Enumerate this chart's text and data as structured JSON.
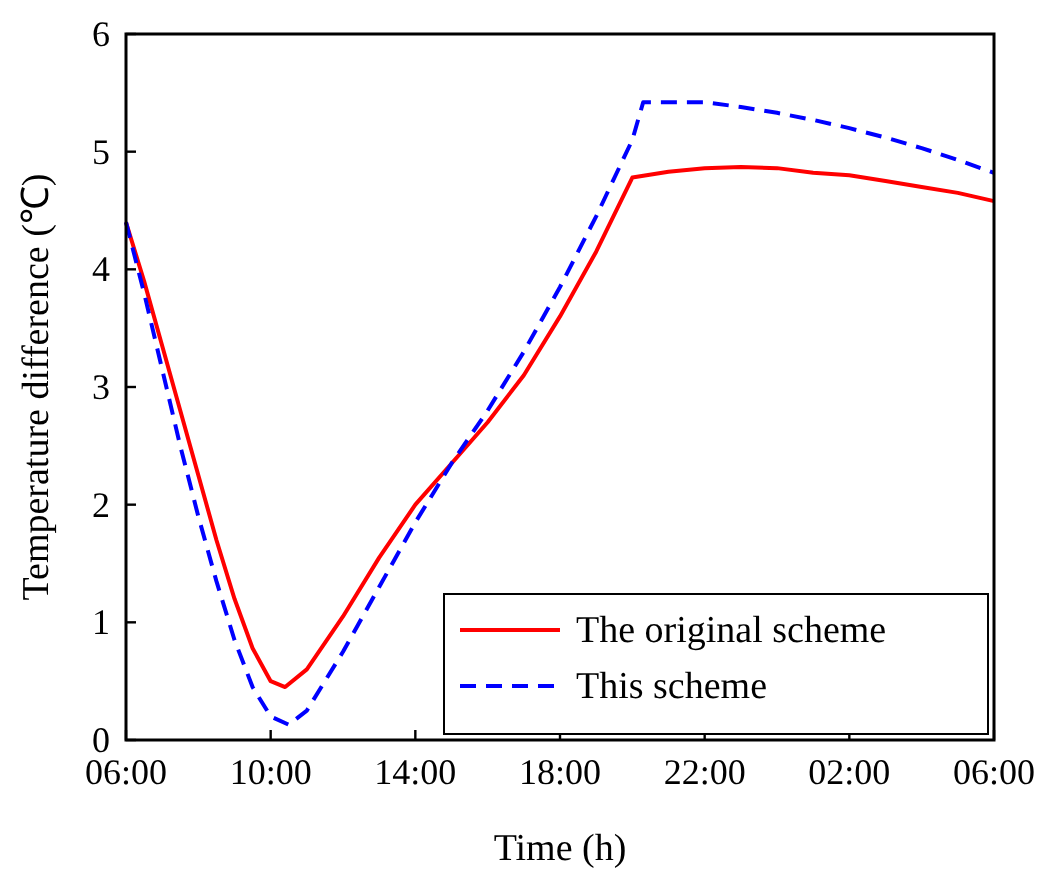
{
  "chart_data": {
    "type": "line",
    "xlabel": "Time (h)",
    "ylabel": "Temperature difference (℃)",
    "xlim": [
      "2000-01-01T06:00",
      "2000-01-02T06:00"
    ],
    "xticks": [
      {
        "value": "2000-01-01T06:00",
        "label": "06:00"
      },
      {
        "value": "2000-01-01T10:00",
        "label": "10:00"
      },
      {
        "value": "2000-01-01T14:00",
        "label": "14:00"
      },
      {
        "value": "2000-01-01T18:00",
        "label": "18:00"
      },
      {
        "value": "2000-01-01T22:00",
        "label": "22:00"
      },
      {
        "value": "2000-01-02T02:00",
        "label": "02:00"
      },
      {
        "value": "2000-01-02T06:00",
        "label": "06:00"
      }
    ],
    "ylim": [
      0,
      6
    ],
    "yticks": [
      0,
      1,
      2,
      3,
      4,
      5,
      6
    ],
    "grid": false,
    "legend": "bottom right",
    "marker": "none",
    "series": [
      {
        "name": "The original scheme",
        "color": "#ff0000",
        "line_style": "solid",
        "x": [
          "2000-01-01T06:00",
          "2000-01-01T06:30",
          "2000-01-01T07:00",
          "2000-01-01T07:30",
          "2000-01-01T08:00",
          "2000-01-01T08:30",
          "2000-01-01T09:00",
          "2000-01-01T09:30",
          "2000-01-01T10:00",
          "2000-01-01T10:24",
          "2000-01-01T11:00",
          "2000-01-01T12:00",
          "2000-01-01T13:00",
          "2000-01-01T14:00",
          "2000-01-01T15:00",
          "2000-01-01T16:00",
          "2000-01-01T17:00",
          "2000-01-01T18:00",
          "2000-01-01T19:00",
          "2000-01-01T20:00",
          "2000-01-01T21:00",
          "2000-01-01T22:00",
          "2000-01-01T23:00",
          "2000-01-02T00:00",
          "2000-01-02T01:00",
          "2000-01-02T02:00",
          "2000-01-02T03:00",
          "2000-01-02T04:00",
          "2000-01-02T05:00",
          "2000-01-02T06:00"
        ],
        "values": [
          4.4,
          3.9,
          3.35,
          2.8,
          2.25,
          1.7,
          1.2,
          0.78,
          0.5,
          0.45,
          0.6,
          1.05,
          1.55,
          2.0,
          2.35,
          2.7,
          3.1,
          3.6,
          4.15,
          4.78,
          4.83,
          4.86,
          4.87,
          4.86,
          4.82,
          4.8,
          4.75,
          4.7,
          4.65,
          4.58
        ]
      },
      {
        "name": "This scheme",
        "color": "#0000ff",
        "line_style": "dashed",
        "x": [
          "2000-01-01T06:00",
          "2000-01-01T06:30",
          "2000-01-01T07:00",
          "2000-01-01T07:30",
          "2000-01-01T08:00",
          "2000-01-01T08:30",
          "2000-01-01T09:00",
          "2000-01-01T09:30",
          "2000-01-01T10:00",
          "2000-01-01T10:30",
          "2000-01-01T11:00",
          "2000-01-01T12:00",
          "2000-01-01T13:00",
          "2000-01-01T14:00",
          "2000-01-01T15:00",
          "2000-01-01T16:00",
          "2000-01-01T17:00",
          "2000-01-01T18:00",
          "2000-01-01T19:00",
          "2000-01-01T20:00",
          "2000-01-01T20:18",
          "2000-01-01T21:00",
          "2000-01-01T22:00",
          "2000-01-01T23:00",
          "2000-01-02T00:00",
          "2000-01-02T01:00",
          "2000-01-02T02:00",
          "2000-01-02T03:00",
          "2000-01-02T04:00",
          "2000-01-02T05:00",
          "2000-01-02T06:00"
        ],
        "values": [
          4.4,
          3.8,
          3.15,
          2.5,
          1.9,
          1.35,
          0.85,
          0.45,
          0.2,
          0.13,
          0.25,
          0.75,
          1.3,
          1.85,
          2.35,
          2.8,
          3.3,
          3.85,
          4.45,
          5.1,
          5.42,
          5.42,
          5.42,
          5.38,
          5.33,
          5.27,
          5.2,
          5.12,
          5.03,
          4.93,
          4.82
        ]
      }
    ]
  }
}
